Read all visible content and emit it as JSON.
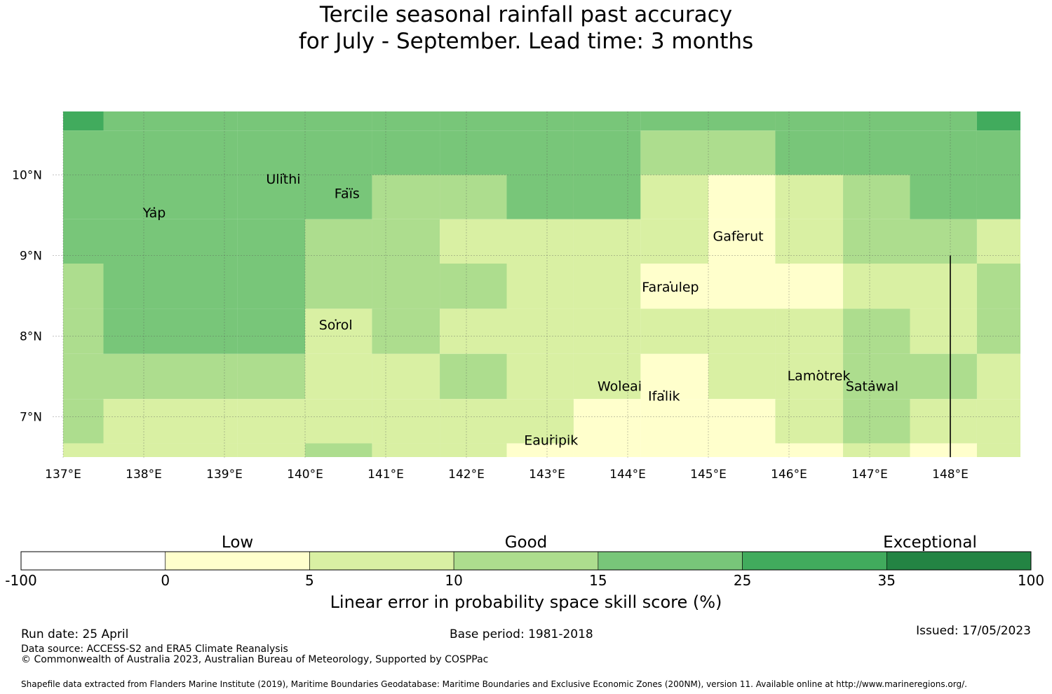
{
  "title": {
    "line1": "Tercile seasonal rainfall past accuracy",
    "line2": "for July - September. Lead time: 3 months"
  },
  "map": {
    "lon_range": [
      137,
      149
    ],
    "lat_range": [
      6.5,
      10.8
    ],
    "x_ticks": [
      "137°E",
      "138°E",
      "139°E",
      "140°E",
      "141°E",
      "142°E",
      "143°E",
      "144°E",
      "145°E",
      "146°E",
      "147°E",
      "148°E"
    ],
    "y_ticks": [
      "10°N",
      "9°N",
      "8°N",
      "7°N"
    ],
    "colors": {
      "c0": "#ffffcc",
      "c1": "#d9f0a3",
      "c2": "#addd8e",
      "c3": "#78c679",
      "c4": "#41ab5d",
      "c5": "#238443"
    },
    "cell_columns": [
      {
        "lon_west": 137.0,
        "lon_east": 137.5
      },
      {
        "lon_west": 137.5,
        "lon_east": 139.16
      },
      {
        "lon_west": 139.16,
        "lon_east": 140.0
      },
      {
        "lon_west": 140.0,
        "lon_east": 140.83
      },
      {
        "lon_west": 140.83,
        "lon_east": 141.67
      },
      {
        "lon_west": 141.67,
        "lon_east": 142.5
      },
      {
        "lon_west": 142.5,
        "lon_east": 143.33
      },
      {
        "lon_west": 143.33,
        "lon_east": 144.16
      },
      {
        "lon_west": 144.16,
        "lon_east": 145.0
      },
      {
        "lon_west": 145.0,
        "lon_east": 145.83
      },
      {
        "lon_west": 145.83,
        "lon_east": 146.67
      },
      {
        "lon_west": 146.67,
        "lon_east": 147.5
      },
      {
        "lon_west": 147.5,
        "lon_east": 148.33
      },
      {
        "lon_west": 148.33,
        "lon_east": 149.0
      }
    ],
    "cell_rows": [
      {
        "lat_north": 10.8,
        "lat_south": 10.55,
        "cats": [
          "c4",
          "c3",
          "c3",
          "c3",
          "c3",
          "c3",
          "c3",
          "c3",
          "c3",
          "c3",
          "c3",
          "c3",
          "c3",
          "c4"
        ]
      },
      {
        "lat_north": 10.55,
        "lat_south": 10.0,
        "cats": [
          "c3",
          "c3",
          "c3",
          "c3",
          "c3",
          "c3",
          "c3",
          "c3",
          "c2",
          "c2",
          "c3",
          "c3",
          "c3",
          "c3"
        ]
      },
      {
        "lat_north": 10.0,
        "lat_south": 9.45,
        "cats": [
          "c3",
          "c3",
          "c3",
          "c3",
          "c2",
          "c2",
          "c3",
          "c3",
          "c1",
          "c0",
          "c1",
          "c2",
          "c3",
          "c3"
        ]
      },
      {
        "lat_north": 9.45,
        "lat_south": 8.9,
        "cats": [
          "c3",
          "c3",
          "c3",
          "c2",
          "c2",
          "c1",
          "c1",
          "c1",
          "c1",
          "c0",
          "c1",
          "c2",
          "c2",
          "c1"
        ]
      },
      {
        "lat_north": 8.9,
        "lat_south": 8.34,
        "cats": [
          "c2",
          "c3",
          "c3",
          "c2",
          "c2",
          "c2",
          "c1",
          "c1",
          "c0",
          "c0",
          "c0",
          "c1",
          "c1",
          "c2"
        ]
      },
      {
        "lat_north": 8.34,
        "lat_south": 7.78,
        "cats": [
          "c2",
          "c3",
          "c3",
          "c1",
          "c2",
          "c1",
          "c1",
          "c1",
          "c1",
          "c1",
          "c1",
          "c2",
          "c1",
          "c2"
        ]
      },
      {
        "lat_north": 7.78,
        "lat_south": 7.22,
        "cats": [
          "c2",
          "c2",
          "c2",
          "c1",
          "c1",
          "c2",
          "c1",
          "c1",
          "c0",
          "c1",
          "c1",
          "c2",
          "c2",
          "c1"
        ]
      },
      {
        "lat_north": 7.22,
        "lat_south": 6.67,
        "cats": [
          "c2",
          "c1",
          "c1",
          "c1",
          "c1",
          "c1",
          "c1",
          "c0",
          "c0",
          "c0",
          "c1",
          "c2",
          "c1",
          "c1"
        ]
      },
      {
        "lat_north": 6.67,
        "lat_south": 6.5,
        "cats": [
          "c1",
          "c1",
          "c1",
          "c2",
          "c1",
          "c1",
          "c0",
          "c0",
          "c0",
          "c0",
          "c0",
          "c1",
          "c0",
          "c1"
        ]
      }
    ],
    "boundary_line": {
      "lon": 148.0,
      "lat_from": 9.0,
      "lat_to": 6.5
    },
    "places": [
      {
        "name": "Yap",
        "lon": 138.13,
        "lat": 9.52
      },
      {
        "name": "Ulithi",
        "lon": 139.73,
        "lat": 9.94
      },
      {
        "name": "Faïs",
        "lon": 140.52,
        "lat": 9.76
      },
      {
        "name": "Gaferut",
        "lon": 145.37,
        "lat": 9.23
      },
      {
        "name": "Faraulep",
        "lon": 144.53,
        "lat": 8.6
      },
      {
        "name": "Sorol",
        "lon": 140.38,
        "lat": 8.13
      },
      {
        "name": "Woleai",
        "lon": 143.9,
        "lat": 7.37
      },
      {
        "name": "Ifalik",
        "lon": 144.45,
        "lat": 7.25
      },
      {
        "name": "Lamotrek",
        "lon": 146.37,
        "lat": 7.5
      },
      {
        "name": "Satawal",
        "lon": 147.03,
        "lat": 7.37
      },
      {
        "name": "Eauripik",
        "lon": 143.05,
        "lat": 6.7
      }
    ]
  },
  "colorbar": {
    "headings": [
      "Low",
      "Good",
      "Exceptional"
    ],
    "ticks": [
      "-100",
      "0",
      "5",
      "10",
      "15",
      "25",
      "35",
      "100"
    ],
    "colors": [
      "#ffffff",
      "#ffffcc",
      "#d9f0a3",
      "#addd8e",
      "#78c679",
      "#41ab5d",
      "#238443"
    ],
    "label": "Linear error in probability space skill score (%)"
  },
  "footer": {
    "run_date": "Run date: 25 April",
    "base_period": "Base period: 1981-2018",
    "issued": "Issued: 17/05/2023",
    "data_source": "Data source: ACCESS-S2 and ERA5 Climate Reanalysis",
    "copyright": "© Commonwealth of Australia 2023, Australian Bureau of Meteorology, Supported by COSPPac",
    "shapefile": "Shapefile data extracted from Flanders Marine Institute (2019), Maritime Boundaries Geodatabase: Maritime Boundaries and Exclusive Economic Zones (200NM), version 11. Available online at http://www.marineregions.org/."
  }
}
